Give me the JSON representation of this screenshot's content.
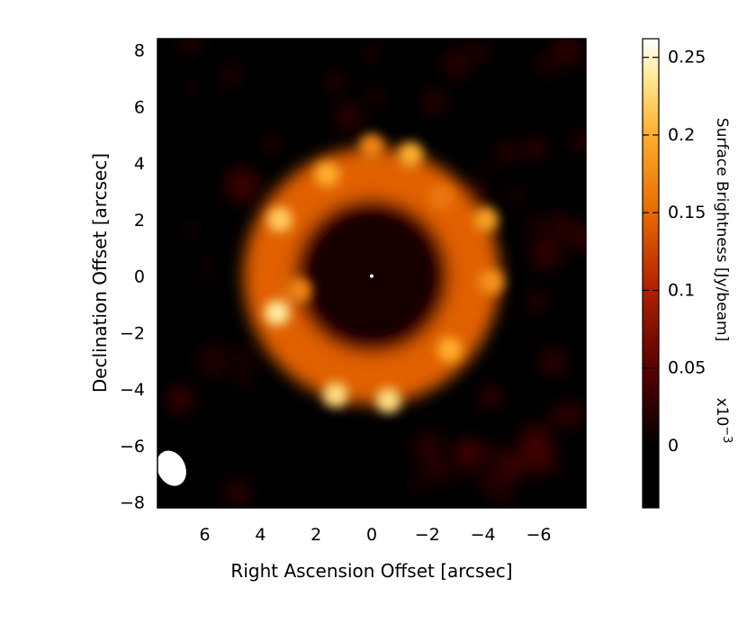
{
  "chart_data": {
    "type": "heatmap",
    "title": "",
    "xlabel": "Right Ascension Offset [arcsec]",
    "ylabel": "Declination Offset [arcsec]",
    "xlim": [
      7.7,
      -7.7
    ],
    "ylim": [
      -8.2,
      8.4
    ],
    "x_ticks": [
      6,
      4,
      2,
      0,
      -2,
      -4,
      -6
    ],
    "x_tick_labels": [
      "6",
      "4",
      "2",
      "0",
      "−2",
      "−4",
      "−6"
    ],
    "y_ticks": [
      8,
      6,
      4,
      2,
      0,
      -2,
      -4,
      -6,
      -8
    ],
    "y_tick_labels": [
      "8",
      "6",
      "4",
      "2",
      "0",
      "−2",
      "−4",
      "−6",
      "−8"
    ],
    "colorbar": {
      "label": "Surface Brightness [Jy/beam]",
      "multiplier": "x10",
      "multiplier_exponent": "−3",
      "range": [
        -0.04,
        0.262
      ],
      "ticks": [
        0,
        0.05,
        0.1,
        0.15,
        0.2,
        0.25
      ],
      "tick_labels": [
        "0",
        "0.05",
        "0.1",
        "0.15",
        "0.2",
        "0.25"
      ],
      "colormap": "heat (black-red-orange-yellow-white)"
    },
    "image_features": {
      "structure": "clumpy ring of emission",
      "ring_center_arcsec": [
        0,
        0
      ],
      "ring_radius_arcsec": 3.7,
      "ring_peak_brightness": 0.24,
      "bright_clumps": [
        {
          "ra": 3.4,
          "dec": -1.3,
          "value": 0.24
        },
        {
          "ra": 3.3,
          "dec": 2.0,
          "value": 0.22
        },
        {
          "ra": 1.3,
          "dec": -4.2,
          "value": 0.23
        },
        {
          "ra": -0.6,
          "dec": -4.4,
          "value": 0.23
        },
        {
          "ra": -2.8,
          "dec": -2.6,
          "value": 0.2
        },
        {
          "ra": -4.1,
          "dec": 2.0,
          "value": 0.19
        },
        {
          "ra": -4.3,
          "dec": -0.2,
          "value": 0.18
        },
        {
          "ra": 1.6,
          "dec": 3.6,
          "value": 0.2
        },
        {
          "ra": -1.4,
          "dec": 4.3,
          "value": 0.2
        },
        {
          "ra": 0.0,
          "dec": 4.6,
          "value": 0.17
        },
        {
          "ra": 2.6,
          "dec": -0.5,
          "value": 0.17
        },
        {
          "ra": -2.5,
          "dec": 2.8,
          "value": 0.16
        }
      ],
      "central_point_source_arcsec": [
        0,
        0
      ],
      "beam": {
        "ra": 7.2,
        "dec": -6.8,
        "major_arcsec": 1.3,
        "minor_arcsec": 1.0,
        "position_angle_deg": 25
      }
    }
  }
}
